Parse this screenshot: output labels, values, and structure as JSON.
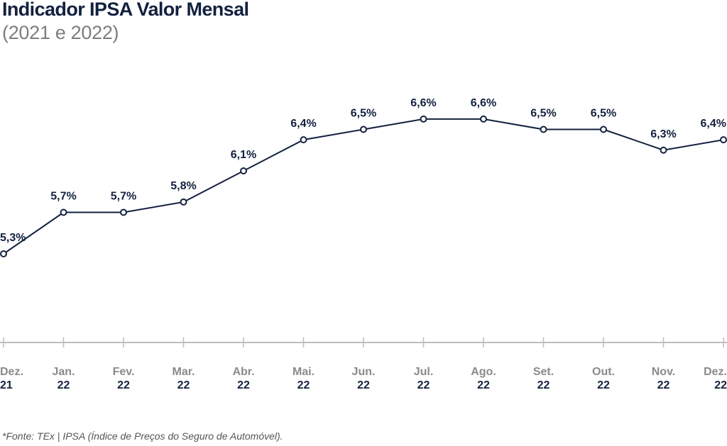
{
  "chart_data": {
    "type": "line",
    "title": "Indicador IPSA Valor Mensal",
    "subtitle": "(2021 e 2022)",
    "categories": [
      {
        "month": "Dez.",
        "year": "21"
      },
      {
        "month": "Jan.",
        "year": "22"
      },
      {
        "month": "Fev.",
        "year": "22"
      },
      {
        "month": "Mar.",
        "year": "22"
      },
      {
        "month": "Abr.",
        "year": "22"
      },
      {
        "month": "Mai.",
        "year": "22"
      },
      {
        "month": "Jun.",
        "year": "22"
      },
      {
        "month": "Jul.",
        "year": "22"
      },
      {
        "month": "Ago.",
        "year": "22"
      },
      {
        "month": "Set.",
        "year": "22"
      },
      {
        "month": "Out.",
        "year": "22"
      },
      {
        "month": "Nov.",
        "year": "22"
      },
      {
        "month": "Dez.",
        "year": "22"
      }
    ],
    "values": [
      5.3,
      5.7,
      5.7,
      5.8,
      6.1,
      6.4,
      6.5,
      6.6,
      6.6,
      6.5,
      6.5,
      6.3,
      6.4
    ],
    "value_labels": [
      "5,3%",
      "5,7%",
      "5,7%",
      "5,8%",
      "6,1%",
      "6,4%",
      "6,5%",
      "6,6%",
      "6,6%",
      "6,5%",
      "6,5%",
      "6,3%",
      "6,4%"
    ],
    "xlabel": "",
    "ylabel": "",
    "grid": false,
    "line_color": "#13213f",
    "tick_month_color": "#8a8a8a",
    "tick_year_color": "#13213f",
    "baseline_color": "#bdbdbd"
  },
  "source": "*Fonte: TEx  |  IPSA (Índice de Preços do Seguro de Automóvel)."
}
